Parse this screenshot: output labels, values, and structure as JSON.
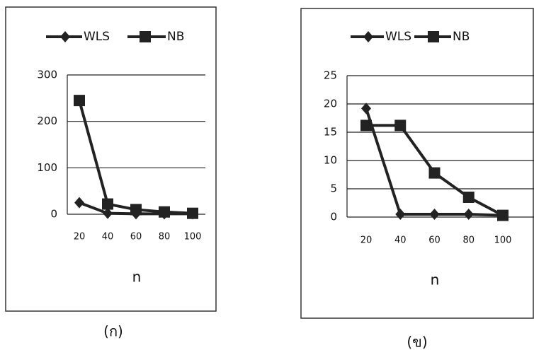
{
  "chart_data": [
    {
      "type": "line",
      "categories": [
        "20",
        "40",
        "60",
        "80",
        "100"
      ],
      "x_label": "n",
      "caption": "(ก)",
      "ylim": [
        0,
        300
      ],
      "yticks": [
        0,
        100,
        200,
        300
      ],
      "grid": true,
      "series": [
        {
          "name": "WLS",
          "color": "#222222",
          "marker": "diamond",
          "values": [
            25,
            2,
            1,
            1,
            1
          ]
        },
        {
          "name": "NB",
          "color": "#222222",
          "marker": "square",
          "values": [
            245,
            22,
            10,
            5,
            2
          ]
        }
      ]
    },
    {
      "type": "line",
      "categories": [
        "20",
        "40",
        "60",
        "80",
        "100"
      ],
      "x_label": "n",
      "caption": "(ข)",
      "ylim": [
        0,
        25
      ],
      "yticks": [
        0,
        5,
        10,
        15,
        20,
        25
      ],
      "grid": true,
      "series": [
        {
          "name": "WLS",
          "color": "#222222",
          "marker": "diamond",
          "values": [
            19.2,
            0.5,
            0.5,
            0.5,
            0.3
          ]
        },
        {
          "name": "NB",
          "color": "#222222",
          "marker": "square",
          "values": [
            16.2,
            16.2,
            7.8,
            3.5,
            0.3
          ]
        }
      ]
    }
  ]
}
